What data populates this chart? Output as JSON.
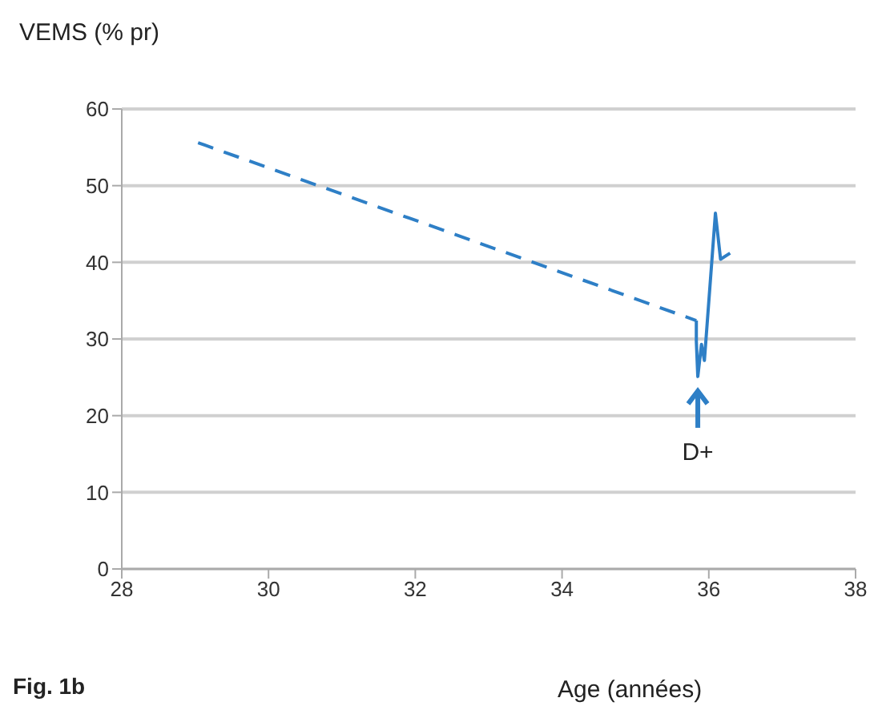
{
  "chart_data": {
    "type": "line",
    "ylabel": "VEMS (% pr)",
    "xlabel": "Age (années)",
    "annotations": [
      "Fig. 1b",
      {
        "text": "D+",
        "x": 35.85,
        "y": 25.1
      }
    ],
    "series": [
      {
        "color": "#2e7fc6",
        "line_style": "dashed",
        "x": [
          29.04,
          35.83
        ],
        "values": [
          55.6,
          32.4
        ]
      },
      {
        "color": "#2e7fc6",
        "line_style": "solid",
        "x": [
          35.83,
          35.83,
          35.85,
          35.9,
          35.94,
          36.09,
          36.16,
          36.29
        ],
        "values": [
          32.4,
          29.7,
          25.1,
          29.3,
          27.2,
          46.4,
          40.4,
          41.2
        ]
      }
    ],
    "xlim": [
      28,
      38
    ],
    "xticks": [
      28,
      30,
      32,
      34,
      36,
      38
    ],
    "ylim": [
      0,
      60
    ],
    "yticks": [
      0,
      10,
      20,
      30,
      40,
      50,
      60
    ],
    "grid": "y",
    "marker": "none"
  }
}
